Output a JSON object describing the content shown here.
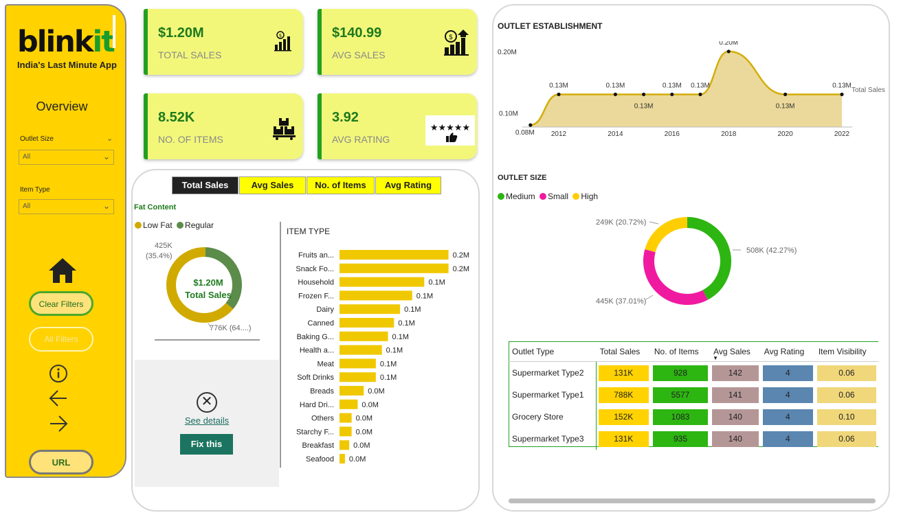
{
  "sidebar": {
    "logo_main": "blink",
    "logo_accent": "it",
    "tagline": "India's Last Minute App",
    "title": "Overview",
    "filter1_label": "Outlet Size",
    "filter1_value": "All",
    "filter2_label": "Item Type",
    "filter2_value": "All",
    "clear_filters": "Clear Filters",
    "all_filters": "All Filters",
    "url": "URL"
  },
  "kpis": [
    {
      "value": "$1.20M",
      "label": "TOTAL SALES",
      "icon": "bar-chart-icon"
    },
    {
      "value": "$140.99",
      "label": "AVG SALES",
      "icon": "money-growth-icon"
    },
    {
      "value": "8.52K",
      "label": "NO. OF ITEMS",
      "icon": "boxes-icon"
    },
    {
      "value": "3.92",
      "label": "AVG RATING",
      "icon": "star-rating-icon"
    }
  ],
  "tabs": [
    "Total Sales",
    "Avg Sales",
    "No. of Items",
    "Avg Rating"
  ],
  "active_tab": "Total Sales",
  "error_panel": {
    "see_details": "See details",
    "fix_this": "Fix this"
  },
  "colors": {
    "sidebar_yellow": "#FFD200",
    "kpi_bg": "#F2F77A",
    "accent_green": "#22A022",
    "bar_yellow": "#F0C800",
    "low_fat": "#D1AA00",
    "regular": "#5B8C4A",
    "medium": "#2DB512",
    "small": "#F01AA0",
    "high": "#FFCE00"
  },
  "chart_data": [
    {
      "type": "pie",
      "title": "Fat Content",
      "center_value": "$1.20M",
      "center_label": "Total Sales",
      "legend": [
        "Low Fat",
        "Regular"
      ],
      "labels": [
        "776K (64....)",
        "425K (35.4%)"
      ],
      "values": [
        776,
        425
      ]
    },
    {
      "type": "bar",
      "title": "ITEM TYPE",
      "categories": [
        "Fruits an...",
        "Snack Fo...",
        "Household",
        "Frozen F...",
        "Dairy",
        "Canned",
        "Baking G...",
        "Health a...",
        "Meat",
        "Soft Drinks",
        "Breads",
        "Hard Dri...",
        "Others",
        "Starchy F...",
        "Breakfast",
        "Seafood"
      ],
      "values": [
        0.18,
        0.18,
        0.14,
        0.12,
        0.1,
        0.09,
        0.08,
        0.07,
        0.06,
        0.06,
        0.04,
        0.03,
        0.02,
        0.02,
        0.016,
        0.009
      ],
      "data_labels": [
        "0.2M",
        "0.2M",
        "0.1M",
        "0.1M",
        "0.1M",
        "0.1M",
        "0.1M",
        "0.1M",
        "0.1M",
        "0.1M",
        "0.0M",
        "0.0M",
        "0.0M",
        "0.0M",
        "0.0M",
        "0.0M"
      ]
    },
    {
      "type": "area",
      "title": "OUTLET ESTABLISHMENT",
      "series_name": "Total Sales",
      "x": [
        2011,
        2012,
        2014,
        2015,
        2016,
        2017,
        2018,
        2020,
        2022
      ],
      "values": [
        0.08,
        0.13,
        0.13,
        0.13,
        0.13,
        0.13,
        0.2,
        0.13,
        0.13
      ],
      "data_labels": [
        "0.08M",
        "0.13M",
        "0.13M",
        "0.13M",
        "0.13M",
        "0.13M",
        "0.20M",
        "0.13M",
        "0.13M"
      ],
      "x_ticks": [
        "2012",
        "2014",
        "2016",
        "2018",
        "2020",
        "2022"
      ],
      "y_ticks": [
        "0.10M",
        "0.20M"
      ],
      "ylim": [
        0.06,
        0.21
      ]
    },
    {
      "type": "pie",
      "title": "OUTLET SIZE",
      "legend": [
        "Medium",
        "Small",
        "High"
      ],
      "values": [
        508,
        445,
        249
      ],
      "labels": [
        "508K (42.27%)",
        "445K (37.01%)",
        "249K (20.72%)"
      ]
    },
    {
      "type": "table",
      "columns": [
        "Outlet Type",
        "Total Sales",
        "No. of Items",
        "Avg Sales",
        "Avg Rating",
        "Item Visibility"
      ],
      "rows": [
        [
          "Supermarket Type2",
          "131K",
          "928",
          "142",
          "4",
          "0.06"
        ],
        [
          "Supermarket Type1",
          "788K",
          "5577",
          "141",
          "4",
          "0.06"
        ],
        [
          "Grocery Store",
          "152K",
          "1083",
          "140",
          "4",
          "0.10"
        ],
        [
          "Supermarket Type3",
          "131K",
          "935",
          "140",
          "4",
          "0.06"
        ]
      ],
      "column_colors": [
        "",
        "#FFD200",
        "#2DB512",
        "#B59696",
        "#5A86B0",
        "#F0D77A"
      ]
    }
  ]
}
